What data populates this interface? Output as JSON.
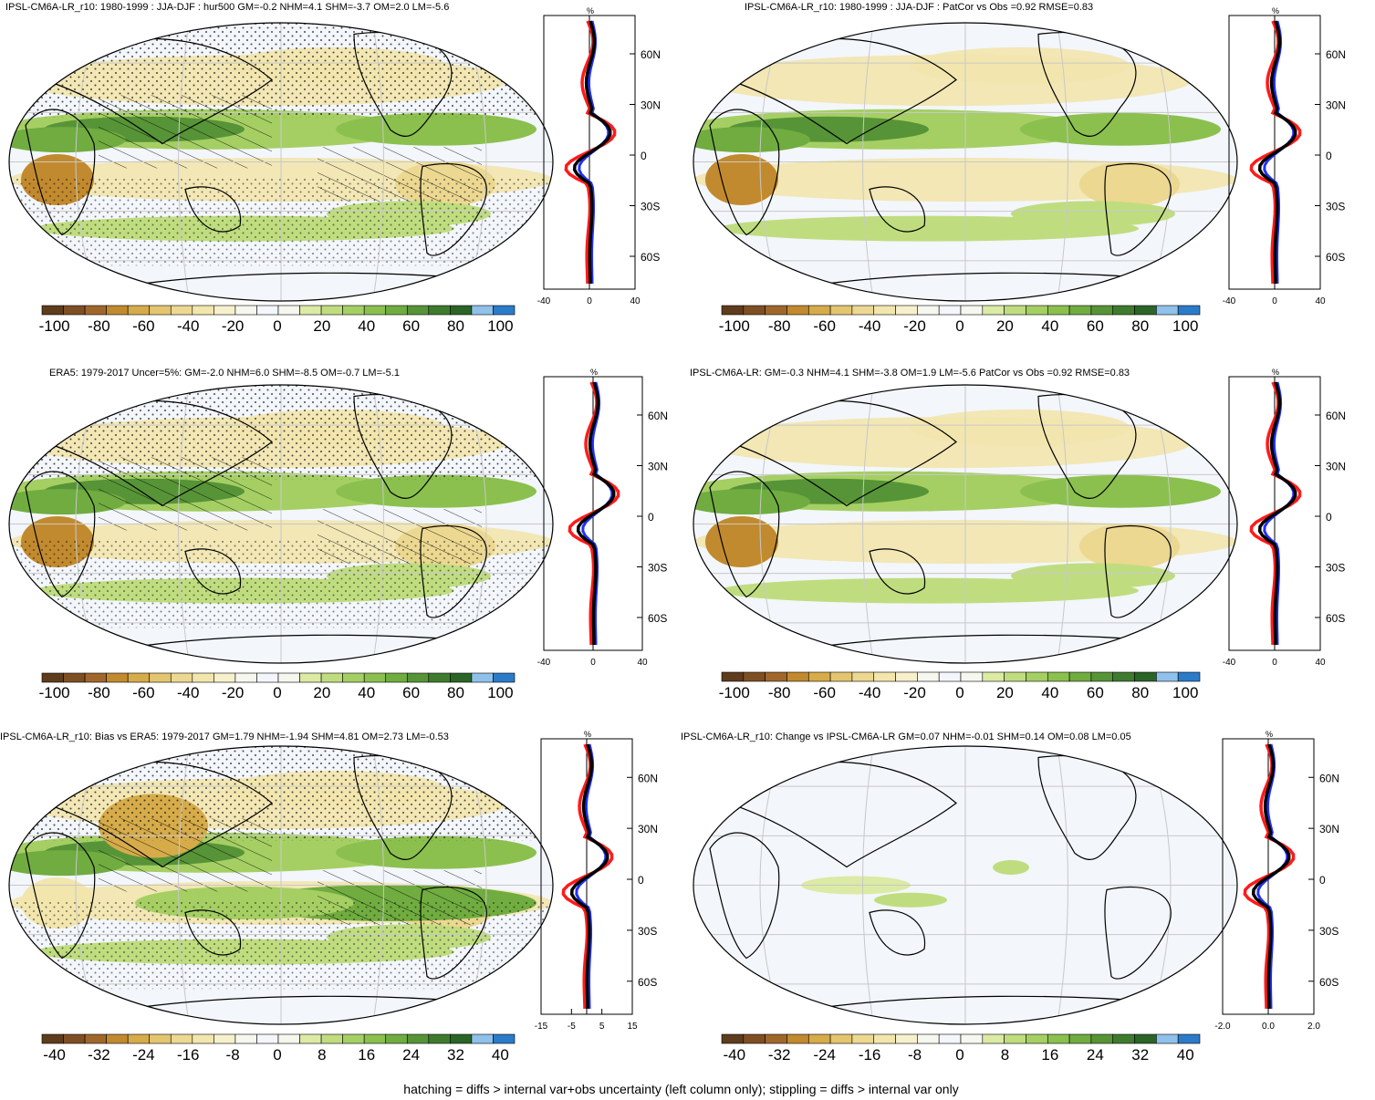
{
  "panels": [
    {
      "id": "p1",
      "title": "IPSL-CM6A-LR_r10: 1980-1999 : JJA-DJF : hur500 GM=-0.2 NHM=4.1 SHM=-3.7 OM=2.0 LM=-5.6",
      "zonal": {
        "pct": "%",
        "yticks": [
          "60N",
          "30N",
          "0",
          "30S",
          "60S"
        ],
        "xticks": [
          "-40",
          "0",
          "40"
        ]
      },
      "colorbar": [
        "-100",
        "-80",
        "-60",
        "-40",
        "-20",
        "0",
        "20",
        "40",
        "60",
        "80",
        "100"
      ]
    },
    {
      "id": "p2",
      "title": "IPSL-CM6A-LR_r10: 1980-1999 : JJA-DJF : PatCor vs Obs =0.92 RMSE=0.83",
      "zonal": {
        "pct": "%",
        "yticks": [
          "60N",
          "30N",
          "0",
          "30S",
          "60S"
        ],
        "xticks": [
          "-40",
          "0",
          "40"
        ]
      },
      "colorbar": [
        "-100",
        "-80",
        "-60",
        "-40",
        "-20",
        "0",
        "20",
        "40",
        "60",
        "80",
        "100"
      ]
    },
    {
      "id": "p3",
      "title": "ERA5: 1979-2017 Uncer=5%: GM=-2.0 NHM=6.0 SHM=-8.5 OM=-0.7 LM=-5.1",
      "zonal": {
        "pct": "%",
        "yticks": [
          "60N",
          "30N",
          "0",
          "30S",
          "60S"
        ],
        "xticks": [
          "-40",
          "0",
          "40"
        ]
      },
      "colorbar": [
        "-100",
        "-80",
        "-60",
        "-40",
        "-20",
        "0",
        "20",
        "40",
        "60",
        "80",
        "100"
      ]
    },
    {
      "id": "p4",
      "title": "IPSL-CM6A-LR: GM=-0.3 NHM=4.1 SHM=-3.8 OM=1.9 LM=-5.6 PatCor vs Obs =0.92 RMSE=0.83",
      "zonal": {
        "pct": "%",
        "yticks": [
          "60N",
          "30N",
          "0",
          "30S",
          "60S"
        ],
        "xticks": [
          "-40",
          "0",
          "40"
        ]
      },
      "colorbar": [
        "-100",
        "-80",
        "-60",
        "-40",
        "-20",
        "0",
        "20",
        "40",
        "60",
        "80",
        "100"
      ]
    },
    {
      "id": "p5",
      "title": "IPSL-CM6A-LR_r10: Bias vs ERA5: 1979-2017 GM=1.79 NHM=-1.94 SHM=4.81 OM=2.73 LM=-0.53",
      "zonal": {
        "pct": "%",
        "yticks": [
          "60N",
          "30N",
          "0",
          "30S",
          "60S"
        ],
        "xticks": [
          "-15",
          "-5",
          "5",
          "15"
        ]
      },
      "colorbar": [
        "-40",
        "-32",
        "-24",
        "-16",
        "-8",
        "0",
        "8",
        "16",
        "24",
        "32",
        "40"
      ]
    },
    {
      "id": "p6",
      "title": "IPSL-CM6A-LR_r10: Change vs IPSL-CM6A-LR GM=0.07 NHM=-0.01 SHM=0.14 OM=0.08 LM=0.05",
      "zonal": {
        "pct": "%",
        "yticks": [
          "60N",
          "30N",
          "0",
          "30S",
          "60S"
        ],
        "xticks": [
          "-2.0",
          "0.0",
          "2.0"
        ]
      },
      "colorbar": [
        "-40",
        "-32",
        "-24",
        "-16",
        "-8",
        "0",
        "8",
        "16",
        "24",
        "32",
        "40"
      ]
    }
  ],
  "palette": [
    "#5e3c1c",
    "#7f4f24",
    "#a0672c",
    "#c28a2e",
    "#d6ab4a",
    "#e4c56f",
    "#ecd891",
    "#f2e6ad",
    "#f7f0cc",
    "#f6f7ee",
    "#f3f6fb",
    "#f6f7ee",
    "#dbeaa5",
    "#bfdd7f",
    "#a5cf63",
    "#8bc04e",
    "#70ac40",
    "#579437",
    "#3f7b2e",
    "#2b6427",
    "#8fc1ea",
    "#2b7bc9"
  ],
  "line_colors": {
    "model": "#000000",
    "obs": "#ff1a1a",
    "other": "#1f2fff"
  },
  "footer": "hatching = diffs > internal var+obs uncertainty (left column only); stippling = diffs > internal var only"
}
